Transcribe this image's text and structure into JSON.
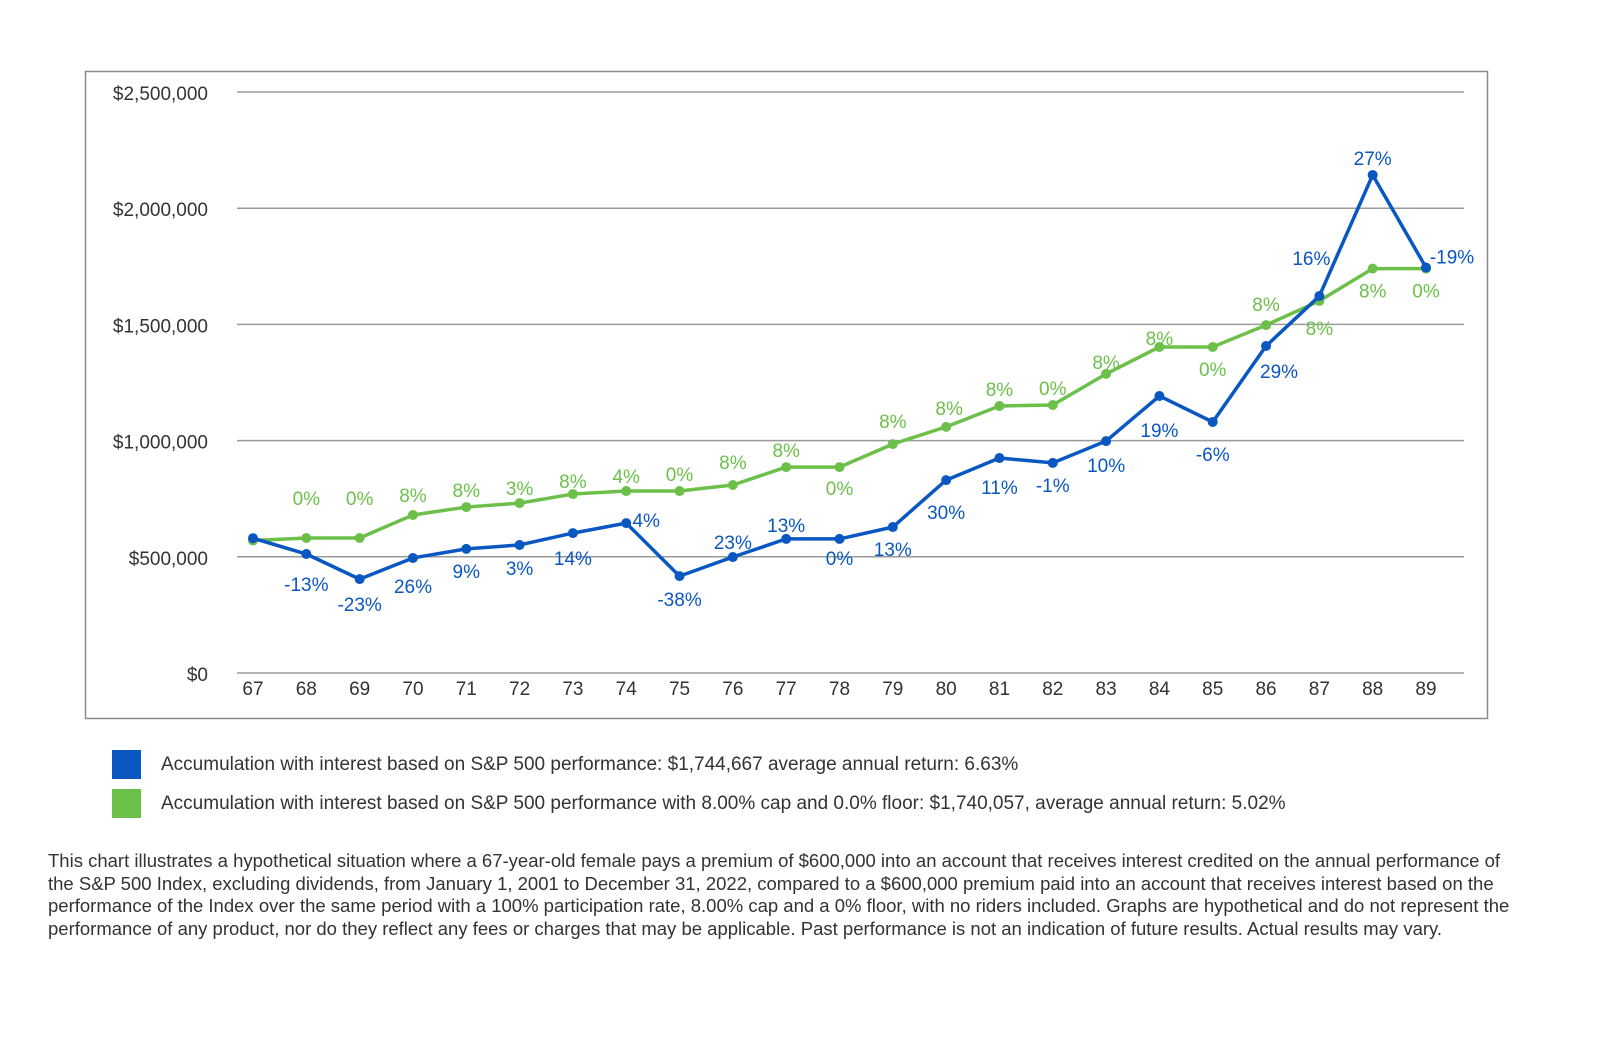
{
  "chart_data": {
    "type": "line",
    "x": [
      67,
      68,
      69,
      70,
      71,
      72,
      73,
      74,
      75,
      76,
      77,
      78,
      79,
      80,
      81,
      82,
      83,
      84,
      85,
      86,
      87,
      88,
      89
    ],
    "ylim": [
      0,
      2500000
    ],
    "yticks": [
      0,
      500000,
      1000000,
      1500000,
      2000000,
      2500000
    ],
    "ytick_labels": [
      "$0",
      "$500,000",
      "$1,000,000",
      "$1,500,000",
      "$2,000,000",
      "$2,500,000"
    ],
    "grid": true,
    "legend_placement": "bottom",
    "series": [
      {
        "name": "Accumulation with interest based on S&P 500 performance: $1,744,667 average annual return: 6.63%",
        "color": "#0a57c2",
        "values": [
          580000,
          512000,
          404000,
          495000,
          534000,
          551000,
          602000,
          645000,
          417000,
          499000,
          577000,
          577000,
          628000,
          830000,
          925000,
          904000,
          998000,
          1192000,
          1080000,
          1407000,
          1622000,
          2143000,
          1744667
        ],
        "labels": [
          "",
          "-13%",
          "-23%",
          "26%",
          "9%",
          "3%",
          "14%",
          "4%",
          "-38%",
          "23%",
          "13%",
          "0%",
          "13%",
          "30%",
          "11%",
          "-1%",
          "10%",
          "19%",
          "-6%",
          "29%",
          "16%",
          "27%",
          "-19%"
        ]
      },
      {
        "name": "Accumulation with interest based on S&P 500 performance with 8.00% cap and 0.0% floor: $1,740,057, average annual return: 5.02%",
        "color": "#6cc04a",
        "values": [
          570000,
          581000,
          581000,
          680000,
          714000,
          731000,
          770000,
          783000,
          783000,
          809000,
          886000,
          886000,
          985000,
          1059000,
          1149000,
          1153000,
          1287000,
          1403000,
          1403000,
          1497000,
          1601000,
          1740057,
          1740057
        ],
        "labels": [
          "",
          "0%",
          "0%",
          "8%",
          "8%",
          "3%",
          "8%",
          "4%",
          "0%",
          "8%",
          "8%",
          "0%",
          "8%",
          "8%",
          "8%",
          "0%",
          "8%",
          "8%",
          "0%",
          "8%",
          "8%",
          "8%",
          "0%"
        ]
      }
    ]
  },
  "footnote": "This chart illustrates a hypothetical situation where a 67-year-old female pays a premium of $600,000 into an account that receives interest credited on the annual performance of the S&P 500 Index, excluding dividends, from January 1, 2001 to December 31, 2022, compared to a $600,000 premium paid into an account that receives interest based on the performance of the Index over the same period with a 100% participation rate, 8.00% cap and a 0% floor, with no riders included. Graphs are hypothetical and do not represent the performance of any product, nor do they reflect any fees or charges that may be applicable. Past performance is not an indication of future results. Actual results may vary."
}
